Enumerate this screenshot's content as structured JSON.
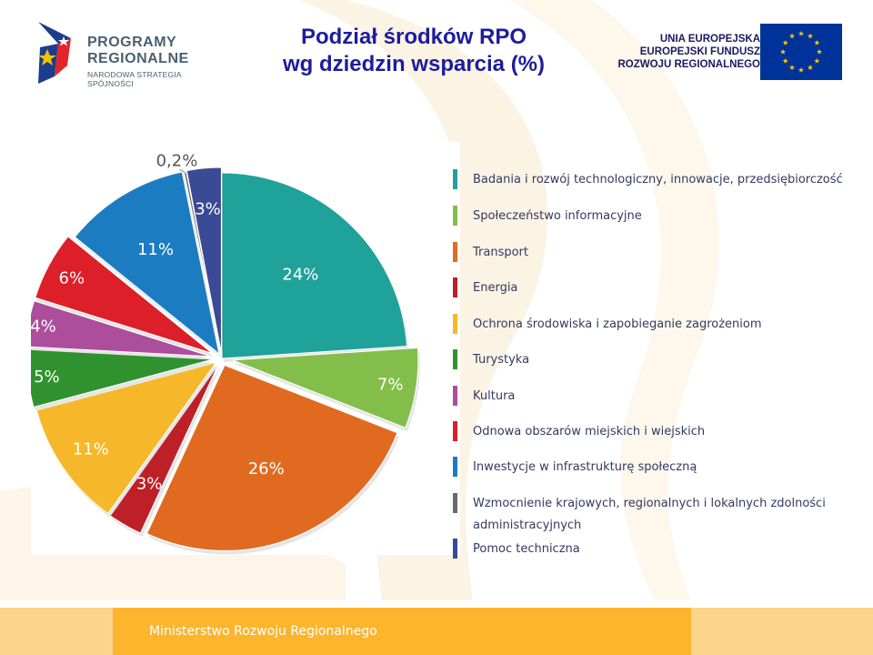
{
  "header": {
    "title_line1": "Podział środków RPO",
    "title_line2": "wg dziedzin wsparcia (%)",
    "logo": {
      "line1": "PROGRAMY",
      "line2": "REGIONALNE",
      "line3": "NARODOWA STRATEGIA SPÓJNOŚCI",
      "icon": "programy-regionalne-logo"
    },
    "eu": {
      "line1": "UNIA EUROPEJSKA",
      "line2": "EUROPEJSKI FUNDUSZ",
      "line3": "ROZWOJU REGIONALNEGO",
      "icon": "eu-flag"
    }
  },
  "chart_data": {
    "type": "pie",
    "title": "Podział środków RPO wg dziedzin wsparcia (%)",
    "slices": [
      {
        "label": "Badania i rozwój technologiczny, innowacje, przedsiębiorczość",
        "value": 24,
        "value_label": "24%",
        "color": "#1fa29a"
      },
      {
        "label": "Społeczeństwo informacyjne",
        "value": 7,
        "value_label": "7%",
        "color": "#82be49"
      },
      {
        "label": "Transport",
        "value": 26,
        "value_label": "26%",
        "color": "#e06a20"
      },
      {
        "label": "Energia",
        "value": 3,
        "value_label": "3%",
        "color": "#be2027"
      },
      {
        "label": "Ochrona środowiska i zapobieganie zagrożeniom",
        "value": 11,
        "value_label": "11%",
        "color": "#f6b82a"
      },
      {
        "label": "Turystyka",
        "value": 5,
        "value_label": "5%",
        "color": "#30922f"
      },
      {
        "label": "Kultura",
        "value": 4,
        "value_label": "4%",
        "color": "#ac4e9c"
      },
      {
        "label": "Odnowa obszarów miejskich i wiejskich",
        "value": 6,
        "value_label": "6%",
        "color": "#dc1f28"
      },
      {
        "label": "Inwestycje w infrastrukturę społeczną",
        "value": 11,
        "value_label": "11%",
        "color": "#1c7cc2"
      },
      {
        "label": "Wzmocnienie krajowych, regionalnych i lokalnych zdolności administracyjnych",
        "value": 0.2,
        "value_label": "0,2%",
        "color": "#6b6b6b"
      },
      {
        "label": "Pomoc techniczna",
        "value": 3,
        "value_label": "3%",
        "color": "#3b4a94"
      }
    ],
    "legend_position": "right"
  },
  "footer": {
    "text": "Ministerstwo Rozwoju Regionalnego"
  },
  "colors": {
    "title": "#1c1d9c",
    "footer_band": "#fcb52c",
    "footer_light": "#fdd48b"
  }
}
